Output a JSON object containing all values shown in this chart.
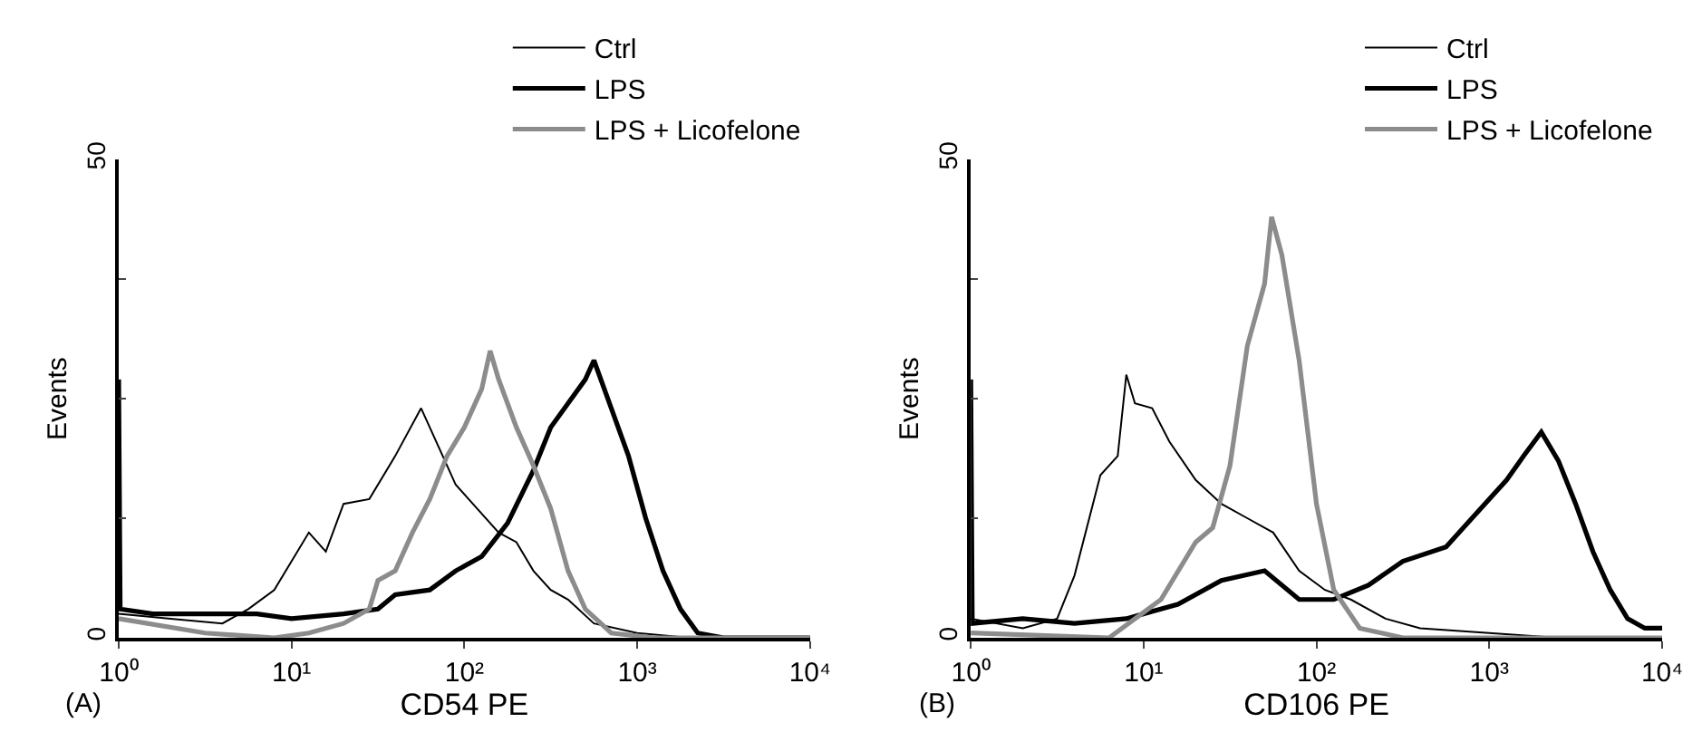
{
  "chart_data": [
    {
      "type": "line",
      "xlabel": "CD54 PE",
      "ylabel": "Events",
      "log": "x",
      "legend": "top right",
      "xlim": [
        1,
        10000
      ],
      "ylim": [
        0,
        50
      ],
      "xticks": [
        {
          "value": 1,
          "label": "10⁰"
        },
        {
          "value": 10,
          "label": "10¹"
        },
        {
          "value": 100,
          "label": "10²"
        },
        {
          "value": 1000,
          "label": "10³"
        },
        {
          "value": 10000,
          "label": "10⁴"
        }
      ],
      "yticks": [
        0,
        {
          "value": 12.5,
          "label": null
        },
        {
          "value": 25,
          "label": null
        },
        {
          "value": 37.5,
          "label": null
        },
        50
      ],
      "annotations": [
        "(A)"
      ],
      "series": [
        {
          "name": "Ctrl",
          "color": "#000000",
          "x": [
            1,
            2,
            3.98,
            5.62,
            7.94,
            12.6,
            15.8,
            20,
            28.2,
            39.8,
            56.2,
            70.8,
            89.1,
            112,
            158,
            200,
            251,
            316,
            398,
            562,
            1000,
            2000,
            10000
          ],
          "values": [
            2.5,
            2,
            1.5,
            3,
            5,
            11,
            9,
            14,
            14.5,
            19,
            24,
            20,
            16,
            14,
            11,
            10,
            7,
            5,
            4,
            1.5,
            0.5,
            0,
            0
          ]
        },
        {
          "name": "LPS",
          "color": "#000000",
          "x": [
            1,
            1.02,
            1.58,
            3.16,
            6.31,
            10,
            20,
            31.6,
            39.8,
            63.1,
            89.1,
            126,
            178,
            251,
            316,
            398,
            501,
            562,
            708,
            891,
            1120,
            1410,
            1780,
            2240,
            3160,
            10000
          ],
          "values": [
            27,
            3,
            2.5,
            2.5,
            2.5,
            2,
            2.5,
            3,
            4.5,
            5,
            7,
            8.5,
            12,
            17.5,
            22,
            24.5,
            27,
            29,
            24,
            19,
            12.5,
            7,
            3,
            0.5,
            0,
            0
          ]
        },
        {
          "name": "LPS + Licofelone",
          "color": "#8c8c8c",
          "x": [
            1,
            3.16,
            7.94,
            12.6,
            20,
            28.2,
            31.6,
            39.8,
            50.1,
            63.1,
            79.4,
            100,
            126,
            141,
            158,
            200,
            251,
            316,
            398,
            501,
            708,
            1260,
            10000
          ],
          "values": [
            2,
            0.5,
            0,
            0.5,
            1.5,
            3,
            6,
            7,
            11,
            14.5,
            19,
            22,
            26,
            30,
            27,
            22,
            18,
            13.5,
            7,
            3,
            0.5,
            0,
            0
          ]
        }
      ]
    },
    {
      "type": "line",
      "xlabel": "CD106 PE",
      "ylabel": "Events",
      "log": "x",
      "legend": "top right",
      "xlim": [
        1,
        10000
      ],
      "ylim": [
        0,
        50
      ],
      "xticks": [
        {
          "value": 1,
          "label": "10⁰"
        },
        {
          "value": 10,
          "label": "10¹"
        },
        {
          "value": 100,
          "label": "10²"
        },
        {
          "value": 1000,
          "label": "10³"
        },
        {
          "value": 10000,
          "label": "10⁴"
        }
      ],
      "yticks": [
        0,
        {
          "value": 12.5,
          "label": null
        },
        {
          "value": 25,
          "label": null
        },
        {
          "value": 37.5,
          "label": null
        },
        50
      ],
      "annotations": [
        "(B)"
      ],
      "series": [
        {
          "name": "Ctrl",
          "color": "#000000",
          "x": [
            1,
            2,
            3.16,
            3.98,
            5.62,
            7.08,
            7.94,
            8.91,
            11.2,
            14.1,
            20,
            28.2,
            39.8,
            56.2,
            79.4,
            112,
            158,
            251,
            398,
            1000,
            2510,
            10000
          ],
          "values": [
            2,
            1,
            2,
            6.5,
            17,
            19,
            27.5,
            24.5,
            24,
            20.5,
            16.5,
            14,
            12.5,
            11,
            7,
            5,
            4,
            2,
            1,
            0.5,
            0,
            0
          ]
        },
        {
          "name": "LPS",
          "color": "#000000",
          "x": [
            1,
            1.02,
            2,
            3.98,
            7.94,
            15.8,
            28.2,
            50.1,
            79.4,
            126,
            200,
            316,
            562,
            794,
            1260,
            1580,
            2000,
            2510,
            3160,
            3980,
            5010,
            6310,
            7940,
            10000
          ],
          "values": [
            27,
            1.5,
            2,
            1.5,
            2,
            3.5,
            6,
            7,
            4,
            4,
            5.5,
            8,
            9.5,
            12.5,
            16.5,
            19,
            21.5,
            18.5,
            14,
            9,
            5,
            2,
            1,
            1
          ]
        },
        {
          "name": "LPS + Licofelone",
          "color": "#8c8c8c",
          "x": [
            1,
            6.31,
            12.6,
            20,
            25.1,
            31.6,
            39.8,
            50.1,
            55,
            63.1,
            79.4,
            100,
            126,
            178,
            316,
            10000
          ],
          "values": [
            0.5,
            0,
            4,
            10,
            11.5,
            18,
            30.5,
            37,
            44,
            40,
            29,
            14,
            5,
            1,
            0,
            0
          ]
        }
      ]
    }
  ]
}
